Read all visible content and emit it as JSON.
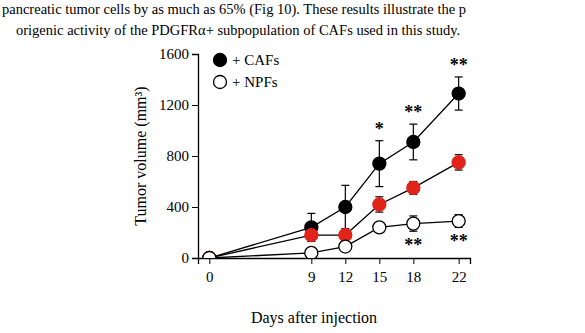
{
  "document": {
    "lines": [
      "pancreatic tumor cells by as much as 65% (Fig 10). These results illustrate the p",
      "origenic activity of the PDGFRα+ subpopulation of CAFs used in this study."
    ]
  },
  "chart_data": {
    "type": "line",
    "xlabel": "Days after injection",
    "ylabel": "Tumor volume (mm³)",
    "x": [
      0,
      9,
      12,
      15,
      18,
      22
    ],
    "xlim": [
      -1,
      23
    ],
    "xticks": [
      0,
      9,
      12,
      15,
      18,
      22
    ],
    "ylim": [
      0,
      1600
    ],
    "yticks": [
      0,
      400,
      800,
      1200,
      1600
    ],
    "legend": "upper left",
    "series": [
      {
        "name": "+ CAFs",
        "color": "#000000",
        "marker": "filled",
        "line_style": "solid",
        "values": [
          0,
          240,
          400,
          740,
          910,
          1290
        ],
        "errors": [
          0,
          110,
          170,
          180,
          140,
          130
        ]
      },
      {
        "color": "#e2231a",
        "marker": "filled",
        "line_style": "solid",
        "values": [
          0,
          180,
          180,
          420,
          550,
          750
        ],
        "errors": [
          0,
          20,
          20,
          60,
          50,
          60
        ]
      },
      {
        "name": "+ NPFs",
        "color": "#ffffff",
        "marker": "open",
        "line_style": "solid",
        "values": [
          0,
          40,
          90,
          240,
          270,
          290
        ],
        "errors": [
          0,
          20,
          20,
          30,
          60,
          50
        ]
      }
    ],
    "annotations": [
      {
        "text": "*",
        "x": 15,
        "series": 0,
        "position": "above"
      },
      {
        "text": "**",
        "x": 18,
        "series": 0,
        "position": "above"
      },
      {
        "text": "**",
        "x": 22,
        "series": 0,
        "position": "above"
      },
      {
        "text": "**",
        "x": 18,
        "series": 2,
        "position": "below"
      },
      {
        "text": "**",
        "x": 22,
        "series": 2,
        "position": "below"
      }
    ]
  }
}
